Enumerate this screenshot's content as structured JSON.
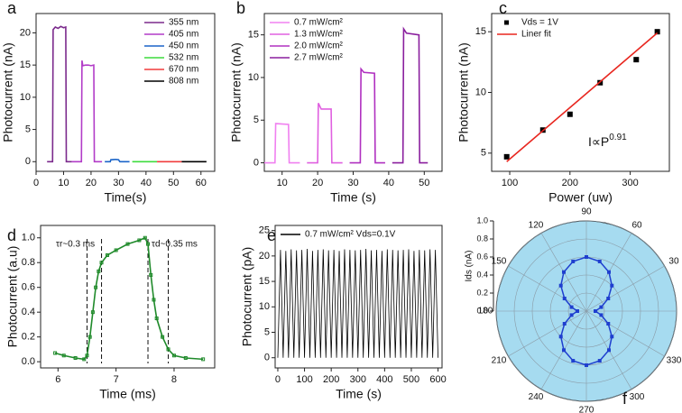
{
  "chart_data": [
    {
      "type": "line",
      "panel": "a",
      "xlabel": "Time(s)",
      "ylabel": "Photocurrent (nA)",
      "xlim": [
        0,
        65
      ],
      "xticks": [
        0,
        10,
        20,
        30,
        40,
        50,
        60
      ],
      "ylim": [
        -1.5,
        23
      ],
      "yticks": [
        0,
        5,
        10,
        15,
        20
      ],
      "legend": "upper right",
      "series": [
        {
          "name": "355 nm",
          "color": "#7b2a8c",
          "x": [
            4,
            6,
            6.2,
            7,
            8,
            9,
            10,
            10.8,
            11,
            13
          ],
          "values": [
            0,
            0,
            20.5,
            20.9,
            20.7,
            21,
            20.8,
            20.9,
            0,
            0
          ]
        },
        {
          "name": "405 nm",
          "color": "#b23cc8",
          "x": [
            13,
            16.5,
            16.7,
            17,
            18,
            19,
            20,
            21,
            21.2,
            24
          ],
          "values": [
            0,
            0,
            15.7,
            14.9,
            15,
            15,
            14.9,
            15,
            0,
            0
          ]
        },
        {
          "name": "450 nm",
          "color": "#1b64c8",
          "x": [
            25,
            27,
            27.2,
            29,
            30,
            30.5,
            32,
            34
          ],
          "values": [
            0,
            0,
            0.3,
            0.35,
            0.3,
            0,
            0,
            0
          ]
        },
        {
          "name": "532 nm",
          "color": "#3ddc3d",
          "x": [
            35,
            44
          ],
          "values": [
            0,
            0
          ]
        },
        {
          "name": "670 nm",
          "color": "#f03c3c",
          "x": [
            44,
            53
          ],
          "values": [
            0,
            0
          ]
        },
        {
          "name": "808 nm",
          "color": "#000000",
          "x": [
            53,
            62
          ],
          "values": [
            0,
            0
          ]
        }
      ]
    },
    {
      "type": "line",
      "panel": "b",
      "xlabel": "Time (s)",
      "ylabel": "Photocurrent (nA)",
      "xlim": [
        5,
        55
      ],
      "xticks": [
        10,
        20,
        30,
        40,
        50
      ],
      "ylim": [
        -1,
        17.5
      ],
      "yticks": [
        0,
        5,
        10,
        15
      ],
      "legend": "upper left",
      "series": [
        {
          "name": "0.7 mW/cm²",
          "color": "#f080f0",
          "x": [
            5,
            8,
            8.2,
            11.8,
            12,
            15
          ],
          "values": [
            0,
            0,
            4.6,
            4.5,
            0,
            0
          ]
        },
        {
          "name": "1.3 mW/cm²",
          "color": "#e060e0",
          "x": [
            17,
            20,
            20.2,
            21,
            23.8,
            24,
            27
          ],
          "values": [
            0,
            0,
            7,
            6.3,
            6.3,
            0,
            0
          ]
        },
        {
          "name": "2.0 mW/cm²",
          "color": "#b030c0",
          "x": [
            29,
            32,
            32.2,
            33,
            36,
            36.2,
            39
          ],
          "values": [
            0,
            0,
            11,
            10.6,
            10.5,
            0,
            0
          ]
        },
        {
          "name": "2.7 mW/cm²",
          "color": "#8a1f9e",
          "x": [
            41,
            44,
            44.2,
            45,
            48.5,
            48.7,
            51
          ],
          "values": [
            0,
            0,
            15.7,
            15.2,
            15,
            0,
            0
          ]
        }
      ]
    },
    {
      "type": "scatter",
      "panel": "c",
      "xlabel": "Power (uw)",
      "ylabel": "Photocurrent (nA)",
      "xlim": [
        70,
        365
      ],
      "xticks": [
        100,
        200,
        300
      ],
      "ylim": [
        3.5,
        16.5
      ],
      "yticks": [
        5,
        10,
        15
      ],
      "legend": "upper left",
      "annotation": {
        "text": "I∝P",
        "superscript": "0.91"
      },
      "series": [
        {
          "name": "Vds = 1V",
          "color": "#000000",
          "mode": "markers",
          "x": [
            95,
            155,
            200,
            250,
            310,
            345
          ],
          "values": [
            4.7,
            6.9,
            8.2,
            10.8,
            12.7,
            15.0
          ]
        },
        {
          "name": "Liner fit",
          "color": "#e8261f",
          "mode": "line",
          "x": [
            95,
            345
          ],
          "values": [
            4.3,
            14.9
          ]
        }
      ]
    },
    {
      "type": "line",
      "panel": "d",
      "xlabel": "Time (ms)",
      "ylabel": "Photocurrent (a.u)",
      "xlim": [
        5.7,
        8.7
      ],
      "xticks": [
        6,
        7,
        8
      ],
      "ylim": [
        -0.05,
        1.1
      ],
      "yticks": [
        {
          "value": 0,
          "label": "0.0"
        },
        0.2,
        0.4,
        0.6,
        0.8,
        {
          "value": 1,
          "label": "1.0"
        }
      ],
      "vlines": [
        6.5,
        6.75,
        7.55,
        7.9
      ],
      "annotations": [
        "τr~0.3 ms",
        "τd~0.35 ms"
      ],
      "series": [
        {
          "color": "#1f8a2a",
          "mode": "line+markers",
          "x": [
            5.95,
            6.1,
            6.3,
            6.45,
            6.5,
            6.55,
            6.6,
            6.65,
            6.7,
            6.75,
            6.85,
            7.0,
            7.2,
            7.4,
            7.5,
            7.55,
            7.6,
            7.65,
            7.7,
            7.8,
            7.9,
            8.0,
            8.2,
            8.5
          ],
          "values": [
            0.07,
            0.05,
            0.03,
            0.02,
            0.05,
            0.2,
            0.4,
            0.6,
            0.73,
            0.8,
            0.86,
            0.9,
            0.95,
            0.98,
            1.0,
            0.95,
            0.7,
            0.5,
            0.35,
            0.2,
            0.1,
            0.05,
            0.03,
            0.02
          ]
        }
      ]
    },
    {
      "type": "line",
      "panel": "e",
      "xlabel": "Time (s)",
      "ylabel": "Photocurrent (pA)",
      "xlim": [
        -10,
        615
      ],
      "xticks": [
        0,
        100,
        200,
        300,
        400,
        500,
        600
      ],
      "ylim": [
        -2,
        26
      ],
      "yticks": [
        0,
        5,
        10,
        15,
        20,
        25
      ],
      "legend": "upper left",
      "series": [
        {
          "name": "0.7 mW/cm²  Vds=0.1V",
          "color": "#000000",
          "x": [
            0,
            10,
            20,
            30,
            40,
            50,
            60,
            70,
            80,
            90,
            100,
            110,
            120,
            130,
            140,
            150,
            160,
            170,
            180,
            190,
            200,
            210,
            220,
            230,
            240,
            250,
            260,
            270,
            280,
            290,
            300,
            310,
            320,
            330,
            340,
            350,
            360,
            370,
            380,
            390,
            400,
            410,
            420,
            430,
            440,
            450,
            460,
            470,
            480,
            490,
            500,
            510,
            520,
            530,
            540,
            550,
            560,
            570,
            580,
            590,
            600
          ],
          "values": [
            0,
            21.2,
            0,
            21.0,
            0,
            21.3,
            0,
            21.1,
            0,
            21.2,
            0,
            21.4,
            0,
            21.0,
            0,
            21.2,
            0,
            21.3,
            0,
            21.1,
            0,
            21.2,
            0,
            21.0,
            0,
            21.3,
            0,
            21.2,
            0,
            21.1,
            0,
            21.2,
            0,
            21.4,
            0,
            21.1,
            0,
            21.2,
            0,
            21.0,
            0,
            21.3,
            0,
            21.2,
            0,
            21.1,
            0,
            21.2,
            0,
            21.3,
            0,
            21.0,
            0,
            21.2,
            0,
            21.1,
            0,
            21.3,
            0,
            21.2,
            0
          ]
        }
      ]
    },
    {
      "type": "polar",
      "panel": "f",
      "ylabel": "Ids (nA)",
      "rlim": [
        0,
        1
      ],
      "rticks": [
        {
          "value": 0,
          "label": "0.0"
        },
        0.2,
        0.4,
        0.6,
        0.8,
        {
          "value": 1,
          "label": "1.0"
        }
      ],
      "thetaticks": [
        0,
        30,
        60,
        90,
        120,
        150,
        180,
        210,
        240,
        270,
        300,
        330
      ],
      "series": [
        {
          "color": "#1f3fcf",
          "theta": [
            0,
            15,
            30,
            45,
            60,
            75,
            90,
            105,
            120,
            135,
            150,
            165,
            180,
            195,
            210,
            225,
            240,
            255,
            270,
            285,
            300,
            315,
            330,
            345
          ],
          "r": [
            0.1,
            0.17,
            0.28,
            0.4,
            0.5,
            0.57,
            0.6,
            0.57,
            0.5,
            0.4,
            0.28,
            0.17,
            0.1,
            0.17,
            0.28,
            0.4,
            0.5,
            0.57,
            0.6,
            0.57,
            0.5,
            0.4,
            0.28,
            0.17
          ]
        }
      ]
    }
  ]
}
